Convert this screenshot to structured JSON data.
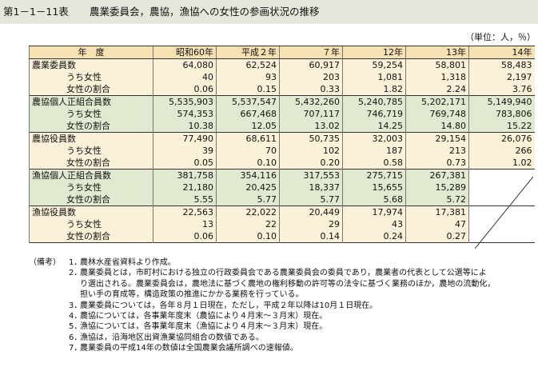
{
  "title": {
    "number": "第1－1－11表",
    "text": "農業委員会，農協，漁協への女性の参画状況の推移"
  },
  "unit_note": "（単位：人，％）",
  "table": {
    "headers": [
      "年　度",
      "昭和60年",
      "平成２年",
      "７年",
      "12年",
      "13年",
      "14年"
    ],
    "groups": [
      {
        "bg": "y",
        "rows": [
          {
            "label": "農業委員数",
            "sub": false,
            "values": [
              "64,080",
              "62,524",
              "60,917",
              "59,254",
              "58,801",
              "58,483"
            ]
          },
          {
            "label": "うち女性",
            "sub": true,
            "values": [
              "40",
              "93",
              "203",
              "1,081",
              "1,318",
              "2,197"
            ]
          },
          {
            "label": "女性の割合",
            "sub": true,
            "values": [
              "0.06",
              "0.15",
              "0.33",
              "1.82",
              "2.24",
              "3.76"
            ]
          }
        ]
      },
      {
        "bg": "g",
        "rows": [
          {
            "label": "農協個人正組合員数",
            "sub": false,
            "values": [
              "5,535,903",
              "5,537,547",
              "5,432,260",
              "5,240,785",
              "5,202,171",
              "5,149,940"
            ]
          },
          {
            "label": "うち女性",
            "sub": true,
            "values": [
              "574,353",
              "667,468",
              "707,117",
              "746,719",
              "769,748",
              "783,806"
            ]
          },
          {
            "label": "女性の割合",
            "sub": true,
            "values": [
              "10.38",
              "12.05",
              "13.02",
              "14.25",
              "14.80",
              "15.22"
            ]
          }
        ]
      },
      {
        "bg": "y",
        "rows": [
          {
            "label": "農協役員数",
            "sub": false,
            "values": [
              "77,490",
              "68,611",
              "50,735",
              "32,003",
              "29,154",
              "26,076"
            ]
          },
          {
            "label": "うち女性",
            "sub": true,
            "values": [
              "39",
              "70",
              "102",
              "187",
              "213",
              "266"
            ]
          },
          {
            "label": "女性の割合",
            "sub": true,
            "values": [
              "0.05",
              "0.10",
              "0.20",
              "0.58",
              "0.73",
              "1.02"
            ]
          }
        ]
      },
      {
        "bg": "g",
        "rows": [
          {
            "label": "漁協個人正組合員数",
            "sub": false,
            "values": [
              "381,758",
              "354,116",
              "317,553",
              "275,715",
              "267,381",
              ""
            ]
          },
          {
            "label": "うち女性",
            "sub": true,
            "values": [
              "21,180",
              "20,425",
              "18,337",
              "15,655",
              "15,289",
              ""
            ]
          },
          {
            "label": "女性の割合",
            "sub": true,
            "values": [
              "5.55",
              "5.77",
              "5.77",
              "5.68",
              "5.72",
              ""
            ]
          }
        ]
      },
      {
        "bg": "y",
        "rows": [
          {
            "label": "漁協役員数",
            "sub": false,
            "values": [
              "22,563",
              "22,022",
              "20,449",
              "17,974",
              "17,381",
              ""
            ]
          },
          {
            "label": "うち女性",
            "sub": true,
            "values": [
              "13",
              "22",
              "29",
              "43",
              "47",
              ""
            ]
          },
          {
            "label": "女性の割合",
            "sub": true,
            "values": [
              "0.06",
              "0.10",
              "0.14",
              "0.24",
              "0.27",
              ""
            ]
          }
        ]
      }
    ]
  },
  "notes": {
    "head": "（備考）",
    "lines": [
      {
        "num": "1．",
        "text": "農林水産省資料より作成。"
      },
      {
        "num": "2．",
        "text": "農業委員とは，市町村における独立の行政委員会である農業委員会の委員であり，農業者の代表として公選等によ"
      },
      {
        "num": "",
        "text": "り選出される。農業委員会は，農地法に基づく農地の権利移動の許可等の法令に基づく業務のほか，農地の流動化，"
      },
      {
        "num": "",
        "text": "担い手の育成等，構造政策の推進にかかる業務を行っている。"
      },
      {
        "num": "3．",
        "text": "農業委員については，各年８月１日現在，ただし，平成２年以降は10月１日現在。"
      },
      {
        "num": "4．",
        "text": "農協については，各事業年度末（農協により４月末～３月末）現在。"
      },
      {
        "num": "5．",
        "text": "漁協については，各事業年度末（漁協により４月末～３月末）現在。"
      },
      {
        "num": "6．",
        "text": "漁協は，沿海地区出資漁業協同組合の数値である。"
      },
      {
        "num": "7．",
        "text": "農業委員の平成14年の数値は全国農業会議所調べの速報値。"
      }
    ]
  }
}
